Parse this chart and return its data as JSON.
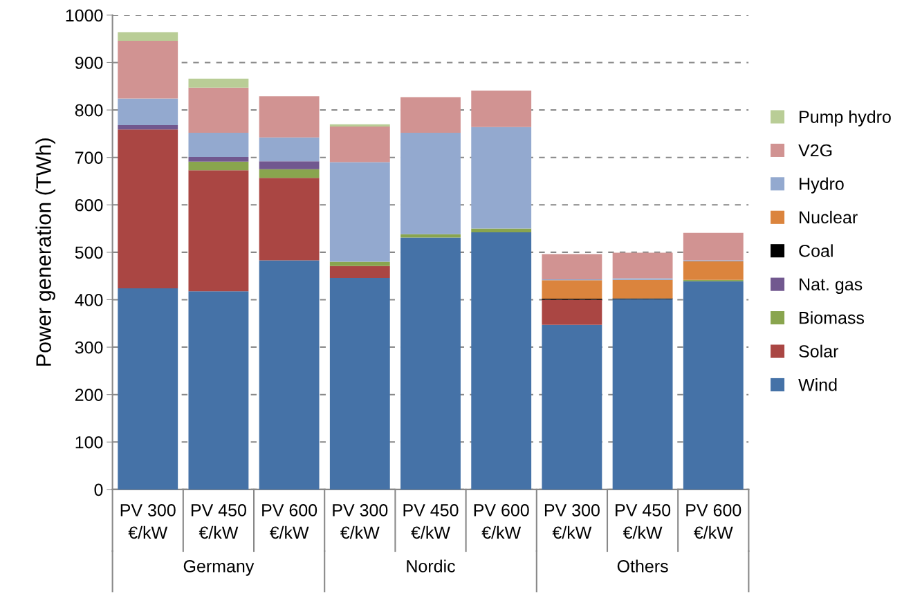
{
  "chart_data": {
    "type": "bar",
    "stacked": true,
    "ylabel": "Power generation (TWh)",
    "categories": [
      "PV 300\n€/kW",
      "PV 450\n€/kW",
      "PV 600\n€/kW",
      "PV 300\n€/kW",
      "PV 450\n€/kW",
      "PV 600\n€/kW",
      "PV 300\n€/kW",
      "PV 450\n€/kW",
      "PV 600\n€/kW"
    ],
    "annotations": [
      "Germany",
      "Nordic",
      "Others"
    ],
    "series": [
      {
        "name": "Wind",
        "color": "#4572a7",
        "values": [
          424,
          418,
          483,
          446,
          531,
          542,
          347,
          401,
          439
        ]
      },
      {
        "name": "Solar",
        "color": "#aa4643",
        "values": [
          335,
          255,
          174,
          25,
          null,
          null,
          53,
          null,
          null
        ]
      },
      {
        "name": "Biomass",
        "color": "#89a54e",
        "values": [
          null,
          18,
          18,
          9,
          7,
          8,
          null,
          null,
          3
        ]
      },
      {
        "name": "Nat. gas",
        "color": "#71588f",
        "values": [
          9,
          10,
          17,
          null,
          null,
          null,
          null,
          null,
          null
        ]
      },
      {
        "name": "Coal",
        "color": "#000000",
        "values": [
          null,
          null,
          null,
          null,
          null,
          null,
          2,
          2,
          null
        ]
      },
      {
        "name": "Nuclear",
        "color": "#db843d",
        "values": [
          null,
          null,
          null,
          null,
          null,
          null,
          39,
          39,
          39
        ]
      },
      {
        "name": "Hydro",
        "color": "#93a9cf",
        "values": [
          56,
          51,
          50,
          210,
          214,
          214,
          2,
          3,
          2
        ]
      },
      {
        "name": "V2G",
        "color": "#d19392",
        "values": [
          122,
          95,
          87,
          75,
          75,
          77,
          53,
          54,
          58
        ]
      },
      {
        "name": "Pump hydro",
        "color": "#b9cd96",
        "values": [
          18,
          19,
          null,
          5,
          null,
          null,
          null,
          null,
          null
        ]
      }
    ],
    "ylim": [
      0,
      1000
    ],
    "yticks": [
      0,
      100,
      200,
      300,
      400,
      500,
      600,
      700,
      800,
      900,
      1000
    ],
    "grid": "y",
    "legend": "right"
  }
}
